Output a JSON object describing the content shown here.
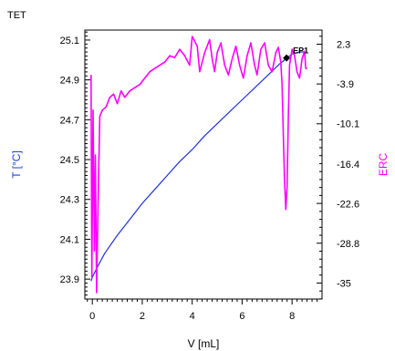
{
  "title": "TET",
  "chart_data": {
    "type": "line",
    "title": "TET",
    "xlabel": "V [mL]",
    "ylabel_left": "T [°C]",
    "ylabel_right": "ERC",
    "xlim": [
      -0.3,
      9.2
    ],
    "ylim_left": [
      23.8,
      25.15
    ],
    "ylim_right": [
      -37.5,
      4.5
    ],
    "x_ticks": [
      0,
      2,
      4,
      6,
      8
    ],
    "x_tick_labels": [
      "0",
      "2",
      "4",
      "6",
      "8"
    ],
    "y_left_ticks": [
      25.1,
      24.9,
      24.7,
      24.5,
      24.3,
      24.1,
      23.9
    ],
    "y_left_tick_labels": [
      "25.1",
      "24.9",
      "24.7",
      "24.5",
      "24.3",
      "24.1",
      "23.9"
    ],
    "y_right_ticks": [
      2.3,
      -3.9,
      -10.1,
      -16.4,
      -22.6,
      -28.8,
      -35
    ],
    "y_right_tick_labels": [
      "2.3",
      "-3.9",
      "-10.1",
      "-16.4",
      "-22.6",
      "-28.8",
      "-35"
    ],
    "colors": {
      "temperature": "#2030e0",
      "erc": "#ff00ff",
      "ylabel_left": "#2040e0",
      "ylabel_right": "#ff00ff",
      "endpoint": "#000000"
    },
    "series": [
      {
        "key": "temperature",
        "axis": "left",
        "points": [
          [
            -0.05,
            23.89
          ],
          [
            0,
            23.91
          ],
          [
            0.2,
            23.96
          ],
          [
            0.5,
            24.03
          ],
          [
            1,
            24.12
          ],
          [
            1.5,
            24.2
          ],
          [
            2,
            24.28
          ],
          [
            2.5,
            24.35
          ],
          [
            3,
            24.42
          ],
          [
            3.5,
            24.49
          ],
          [
            4,
            24.55
          ],
          [
            4.5,
            24.62
          ],
          [
            5,
            24.68
          ],
          [
            5.5,
            24.74
          ],
          [
            6,
            24.8
          ],
          [
            6.5,
            24.86
          ],
          [
            7,
            24.92
          ],
          [
            7.5,
            24.98
          ],
          [
            7.8,
            25.01
          ],
          [
            8.0,
            25.03
          ],
          [
            8.3,
            25.04
          ],
          [
            8.5,
            25.04
          ]
        ]
      },
      {
        "key": "erc",
        "axis": "right",
        "points": [
          [
            -0.05,
            -2.5
          ],
          [
            -0.02,
            -34
          ],
          [
            0.03,
            -8
          ],
          [
            0.08,
            -30
          ],
          [
            0.12,
            -15
          ],
          [
            0.17,
            -36.5
          ],
          [
            0.22,
            -25
          ],
          [
            0.3,
            -9
          ],
          [
            0.4,
            -8
          ],
          [
            0.55,
            -7.5
          ],
          [
            0.7,
            -6
          ],
          [
            0.85,
            -5.5
          ],
          [
            1.0,
            -7
          ],
          [
            1.15,
            -5
          ],
          [
            1.3,
            -6
          ],
          [
            1.5,
            -5
          ],
          [
            1.7,
            -4.5
          ],
          [
            1.9,
            -4
          ],
          [
            2.1,
            -3
          ],
          [
            2.3,
            -2
          ],
          [
            2.5,
            -1.5
          ],
          [
            2.7,
            -1
          ],
          [
            2.9,
            -0.5
          ],
          [
            3.1,
            0.5
          ],
          [
            3.3,
            0.2
          ],
          [
            3.5,
            1.5
          ],
          [
            3.7,
            0.5
          ],
          [
            3.9,
            -1
          ],
          [
            4.0,
            3.5
          ],
          [
            4.2,
            2
          ],
          [
            4.3,
            -2
          ],
          [
            4.5,
            1
          ],
          [
            4.7,
            3
          ],
          [
            4.8,
            0
          ],
          [
            4.9,
            -2
          ],
          [
            5.0,
            1
          ],
          [
            5.15,
            2.5
          ],
          [
            5.3,
            -1
          ],
          [
            5.45,
            -2.5
          ],
          [
            5.6,
            0
          ],
          [
            5.75,
            2
          ],
          [
            5.9,
            -1
          ],
          [
            6.05,
            -3
          ],
          [
            6.2,
            0.5
          ],
          [
            6.35,
            2.5
          ],
          [
            6.5,
            -1
          ],
          [
            6.6,
            -2.5
          ],
          [
            6.75,
            1.5
          ],
          [
            6.9,
            2.5
          ],
          [
            7.05,
            -1
          ],
          [
            7.2,
            -2
          ],
          [
            7.35,
            1
          ],
          [
            7.45,
            1.8
          ],
          [
            7.55,
            -0.5
          ],
          [
            7.6,
            -4
          ],
          [
            7.65,
            -12
          ],
          [
            7.7,
            -19
          ],
          [
            7.75,
            -23.5
          ],
          [
            7.8,
            -20
          ],
          [
            7.85,
            -9
          ],
          [
            7.9,
            -1
          ],
          [
            8.0,
            1.5
          ],
          [
            8.1,
            0.5
          ],
          [
            8.2,
            -2
          ],
          [
            8.3,
            -3
          ],
          [
            8.4,
            0
          ],
          [
            8.5,
            1.2
          ],
          [
            8.55,
            -1.5
          ],
          [
            8.6,
            -1.5
          ]
        ]
      }
    ],
    "annotations": [
      {
        "text": "EP1",
        "x": 7.78,
        "y": 25.01,
        "axis": "left"
      }
    ],
    "grid": false,
    "legend": "none"
  }
}
